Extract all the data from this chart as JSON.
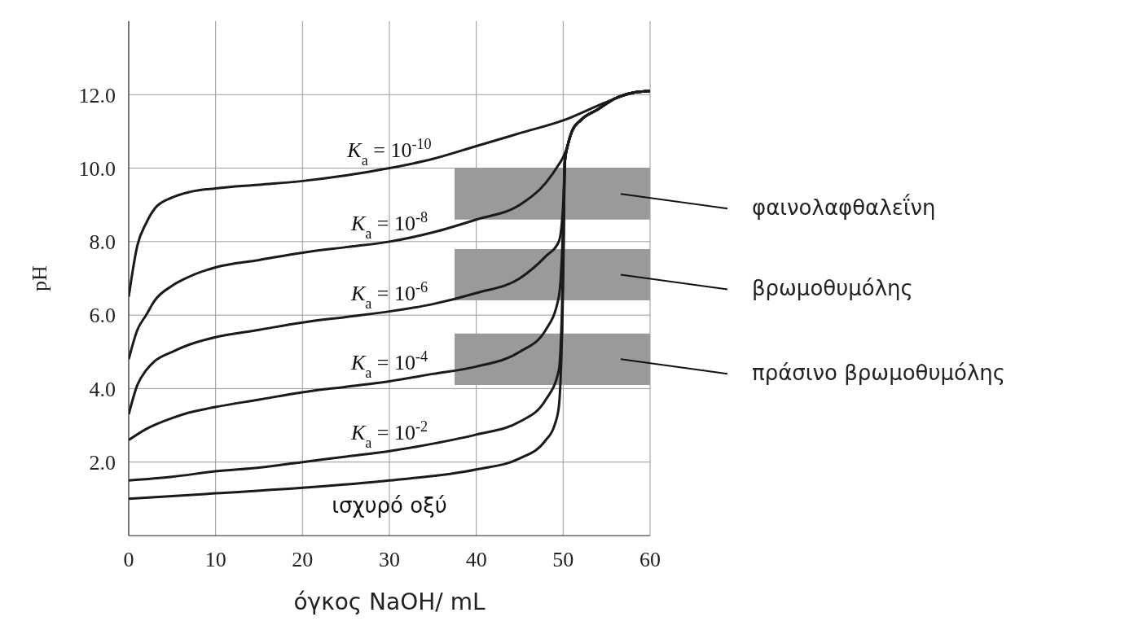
{
  "chart_data": {
    "type": "line",
    "xlabel": "όγκος NaOH/ mL",
    "ylabel": "pH",
    "xlim": [
      0,
      60
    ],
    "xticks": [
      0,
      10,
      20,
      30,
      40,
      50,
      60
    ],
    "ylim": [
      0,
      14
    ],
    "yticks": [
      {
        "value": 2,
        "label": "2.0"
      },
      {
        "value": 4,
        "label": "4.0"
      },
      {
        "value": 6,
        "label": "6.0"
      },
      {
        "value": 8,
        "label": "8.0"
      },
      {
        "value": 10,
        "label": "10.0"
      },
      {
        "value": 12,
        "label": "12.0"
      }
    ],
    "grid": true,
    "marker": "none",
    "line_style": "solid",
    "series": [
      {
        "name": "K$_{a}$ = 10$^{-10}$",
        "color": "#1a1a1a",
        "x": [
          0,
          1,
          2,
          3,
          5,
          7,
          10,
          15,
          20,
          25,
          30,
          35,
          40,
          45,
          50,
          55,
          58,
          60
        ],
        "values": [
          6.5,
          7.9,
          8.5,
          8.9,
          9.2,
          9.35,
          9.45,
          9.55,
          9.65,
          9.8,
          10.0,
          10.25,
          10.6,
          10.95,
          11.3,
          11.8,
          12.05,
          12.1
        ]
      },
      {
        "name": "K$_{a}$ = 10$^{-8}$",
        "color": "#1a1a1a",
        "x": [
          0,
          1,
          2,
          3,
          5,
          7,
          10,
          15,
          20,
          25,
          30,
          35,
          40,
          45,
          48,
          49.5,
          50,
          50.5,
          51,
          52,
          54,
          56,
          58,
          60
        ],
        "values": [
          4.8,
          5.6,
          6.0,
          6.4,
          6.8,
          7.05,
          7.3,
          7.5,
          7.7,
          7.85,
          8.0,
          8.25,
          8.6,
          9.0,
          9.6,
          10.1,
          10.3,
          10.6,
          11.0,
          11.3,
          11.6,
          11.9,
          12.05,
          12.1
        ]
      },
      {
        "name": "K$_{a}$ = 10$^{-6}$",
        "color": "#1a1a1a",
        "x": [
          0,
          1,
          2,
          3,
          5,
          7,
          10,
          15,
          20,
          25,
          30,
          35,
          40,
          45,
          48,
          49.5,
          50,
          50.2,
          50.5,
          51,
          52,
          54,
          56,
          58,
          60
        ],
        "values": [
          3.3,
          4.1,
          4.5,
          4.75,
          5.0,
          5.2,
          5.4,
          5.6,
          5.8,
          5.95,
          6.1,
          6.3,
          6.6,
          7.0,
          7.6,
          8.0,
          9.0,
          10.2,
          10.6,
          11.0,
          11.3,
          11.6,
          11.9,
          12.05,
          12.1
        ]
      },
      {
        "name": "K$_{a}$ = 10$^{-4}$",
        "color": "#1a1a1a",
        "x": [
          0,
          2,
          5,
          7,
          10,
          15,
          20,
          25,
          30,
          35,
          40,
          45,
          48,
          49.5,
          50,
          50.2,
          50.5,
          51,
          52,
          54,
          56,
          58,
          60
        ],
        "values": [
          2.6,
          2.9,
          3.2,
          3.35,
          3.5,
          3.7,
          3.9,
          4.05,
          4.2,
          4.4,
          4.6,
          5.0,
          5.6,
          6.5,
          8.5,
          10.2,
          10.6,
          11.0,
          11.3,
          11.6,
          11.9,
          12.05,
          12.1
        ]
      },
      {
        "name": "K$_{a}$ = 10$^{-2}$",
        "color": "#1a1a1a",
        "x": [
          0,
          5,
          10,
          15,
          20,
          25,
          30,
          35,
          40,
          45,
          48,
          49.5,
          50,
          50.2,
          50.5,
          51,
          52,
          54,
          56,
          58,
          60
        ],
        "values": [
          1.5,
          1.6,
          1.75,
          1.85,
          2.0,
          2.15,
          2.3,
          2.5,
          2.75,
          3.1,
          3.7,
          4.5,
          7.5,
          10.2,
          10.6,
          11.0,
          11.3,
          11.6,
          11.9,
          12.05,
          12.1
        ]
      },
      {
        "name": "ισχυρό οξύ",
        "color": "#1a1a1a",
        "x": [
          0,
          10,
          20,
          30,
          40,
          45,
          48,
          49,
          49.5,
          50,
          50.2,
          50.5,
          51,
          52,
          54,
          56,
          58,
          60
        ],
        "values": [
          1.0,
          1.15,
          1.3,
          1.5,
          1.8,
          2.1,
          2.6,
          3.0,
          3.5,
          7.0,
          10.2,
          10.6,
          11.0,
          11.3,
          11.6,
          11.9,
          12.05,
          12.1
        ]
      }
    ],
    "bands": [
      {
        "axis": "y",
        "from": 8.6,
        "to": 10.0,
        "label": "φαινολαφθαλεΐνη",
        "color": "#9a9a9a"
      },
      {
        "axis": "y",
        "from": 6.4,
        "to": 7.8,
        "label": "βρωμοθυμόλης",
        "color": "#9a9a9a"
      },
      {
        "axis": "y",
        "from": 4.1,
        "to": 5.5,
        "label": "πράσινο βρωμοθυμόλης",
        "color": "#9a9a9a"
      }
    ]
  }
}
